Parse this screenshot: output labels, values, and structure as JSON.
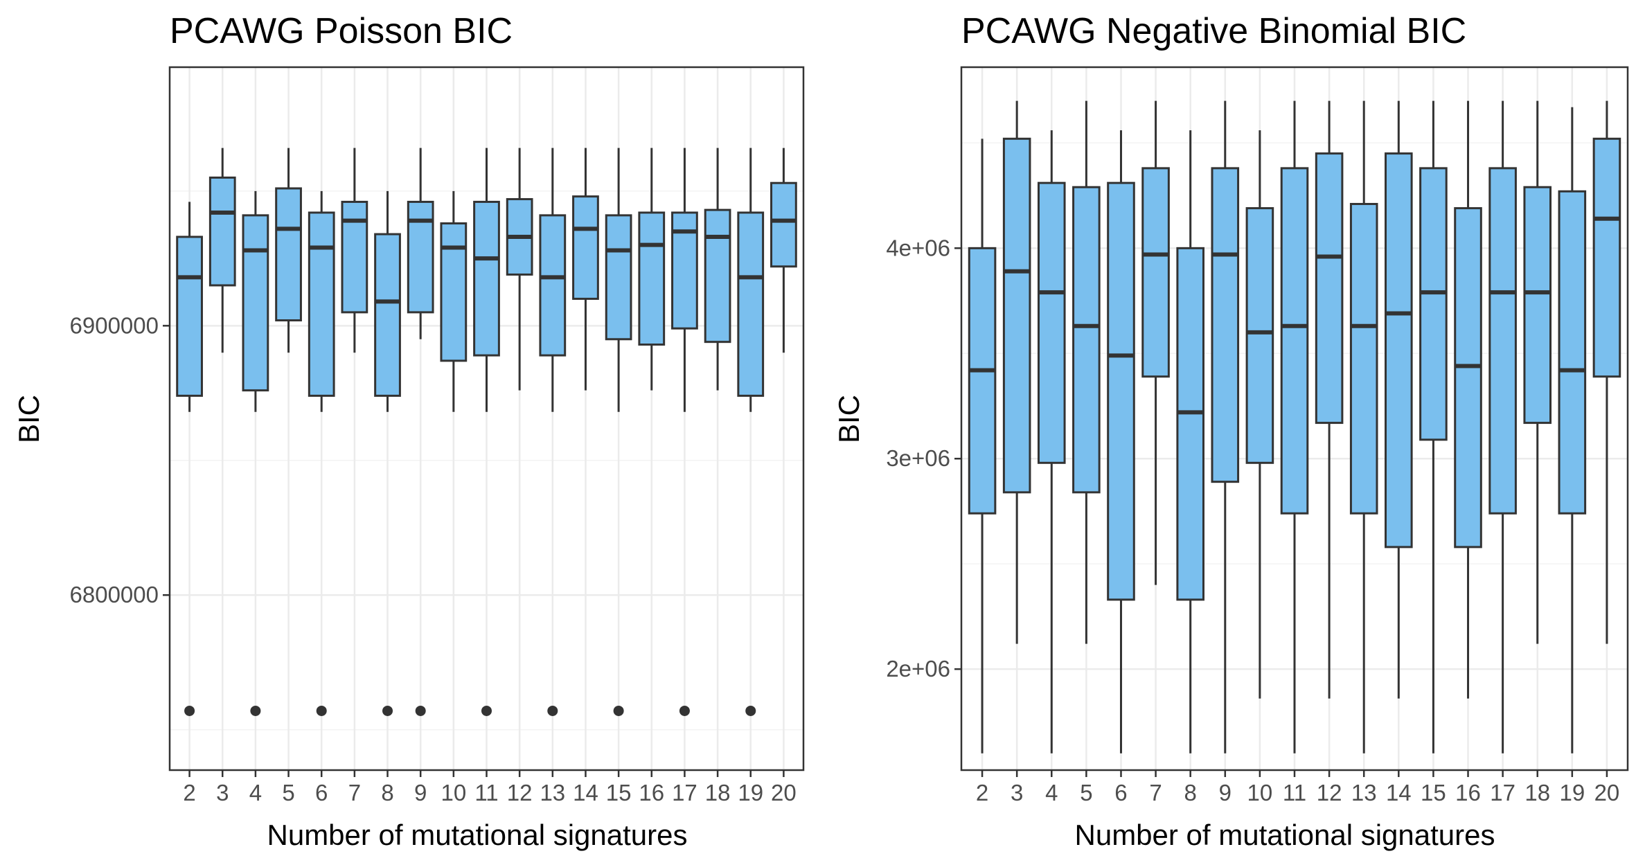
{
  "colors": {
    "box_fill": "#7ABFEE",
    "box_stroke": "#333333",
    "grid_major": "#EBEBEB",
    "grid_minor": "#F3F3F3",
    "panel_border": "#333333",
    "tick_text": "#4D4D4D"
  },
  "chart_data": [
    {
      "type": "boxplot",
      "title": "PCAWG Poisson BIC",
      "xlabel": "Number of mutational signatures",
      "ylabel": "BIC",
      "ylim": [
        6735000,
        6996000
      ],
      "yticks": [
        {
          "value": 6800000,
          "label": "6800000"
        },
        {
          "value": 6900000,
          "label": "6900000"
        }
      ],
      "yminor": [
        6750000,
        6850000,
        6950000
      ],
      "grid": true,
      "categories": [
        "2",
        "3",
        "4",
        "5",
        "6",
        "7",
        "8",
        "9",
        "10",
        "11",
        "12",
        "13",
        "14",
        "15",
        "16",
        "17",
        "18",
        "19",
        "20"
      ],
      "boxes": [
        {
          "k": "2",
          "whisker_low": 6868000,
          "q1": 6874000,
          "median": 6918000,
          "q3": 6933000,
          "whisker_high": 6946000,
          "outliers": [
            6757000
          ]
        },
        {
          "k": "3",
          "whisker_low": 6890000,
          "q1": 6915000,
          "median": 6942000,
          "q3": 6955000,
          "whisker_high": 6966000,
          "outliers": []
        },
        {
          "k": "4",
          "whisker_low": 6868000,
          "q1": 6876000,
          "median": 6928000,
          "q3": 6941000,
          "whisker_high": 6950000,
          "outliers": [
            6757000
          ]
        },
        {
          "k": "5",
          "whisker_low": 6890000,
          "q1": 6902000,
          "median": 6936000,
          "q3": 6951000,
          "whisker_high": 6966000,
          "outliers": []
        },
        {
          "k": "6",
          "whisker_low": 6868000,
          "q1": 6874000,
          "median": 6929000,
          "q3": 6942000,
          "whisker_high": 6950000,
          "outliers": [
            6757000
          ]
        },
        {
          "k": "7",
          "whisker_low": 6890000,
          "q1": 6905000,
          "median": 6939000,
          "q3": 6946000,
          "whisker_high": 6966000,
          "outliers": []
        },
        {
          "k": "8",
          "whisker_low": 6868000,
          "q1": 6874000,
          "median": 6909000,
          "q3": 6934000,
          "whisker_high": 6950000,
          "outliers": [
            6757000
          ]
        },
        {
          "k": "9",
          "whisker_low": 6895000,
          "q1": 6905000,
          "median": 6939000,
          "q3": 6946000,
          "whisker_high": 6966000,
          "outliers": [
            6757000
          ]
        },
        {
          "k": "10",
          "whisker_low": 6868000,
          "q1": 6887000,
          "median": 6929000,
          "q3": 6938000,
          "whisker_high": 6950000,
          "outliers": []
        },
        {
          "k": "11",
          "whisker_low": 6868000,
          "q1": 6889000,
          "median": 6925000,
          "q3": 6946000,
          "whisker_high": 6966000,
          "outliers": [
            6757000
          ]
        },
        {
          "k": "12",
          "whisker_low": 6876000,
          "q1": 6919000,
          "median": 6933000,
          "q3": 6947000,
          "whisker_high": 6966000,
          "outliers": []
        },
        {
          "k": "13",
          "whisker_low": 6868000,
          "q1": 6889000,
          "median": 6918000,
          "q3": 6941000,
          "whisker_high": 6966000,
          "outliers": [
            6757000
          ]
        },
        {
          "k": "14",
          "whisker_low": 6876000,
          "q1": 6910000,
          "median": 6936000,
          "q3": 6948000,
          "whisker_high": 6966000,
          "outliers": []
        },
        {
          "k": "15",
          "whisker_low": 6868000,
          "q1": 6895000,
          "median": 6928000,
          "q3": 6941000,
          "whisker_high": 6966000,
          "outliers": [
            6757000
          ]
        },
        {
          "k": "16",
          "whisker_low": 6876000,
          "q1": 6893000,
          "median": 6930000,
          "q3": 6942000,
          "whisker_high": 6966000,
          "outliers": []
        },
        {
          "k": "17",
          "whisker_low": 6868000,
          "q1": 6899000,
          "median": 6935000,
          "q3": 6942000,
          "whisker_high": 6966000,
          "outliers": [
            6757000
          ]
        },
        {
          "k": "18",
          "whisker_low": 6876000,
          "q1": 6894000,
          "median": 6933000,
          "q3": 6943000,
          "whisker_high": 6966000,
          "outliers": []
        },
        {
          "k": "19",
          "whisker_low": 6868000,
          "q1": 6874000,
          "median": 6918000,
          "q3": 6942000,
          "whisker_high": 6966000,
          "outliers": [
            6757000
          ]
        },
        {
          "k": "20",
          "whisker_low": 6890000,
          "q1": 6922000,
          "median": 6939000,
          "q3": 6953000,
          "whisker_high": 6966000,
          "outliers": []
        }
      ]
    },
    {
      "type": "boxplot",
      "title": "PCAWG Negative Binomial BIC",
      "xlabel": "Number of mutational signatures",
      "ylabel": "BIC",
      "ylim": [
        1520000,
        4860000
      ],
      "yticks": [
        {
          "value": 2000000,
          "label": "2e+06"
        },
        {
          "value": 3000000,
          "label": "3e+06"
        },
        {
          "value": 4000000,
          "label": "4e+06"
        }
      ],
      "yminor": [
        1500000,
        2500000,
        3500000,
        4500000
      ],
      "grid": true,
      "categories": [
        "2",
        "3",
        "4",
        "5",
        "6",
        "7",
        "8",
        "9",
        "10",
        "11",
        "12",
        "13",
        "14",
        "15",
        "16",
        "17",
        "18",
        "19",
        "20"
      ],
      "boxes": [
        {
          "k": "2",
          "whisker_low": 1600000,
          "q1": 2740000,
          "median": 3420000,
          "q3": 4000000,
          "whisker_high": 4520000,
          "outliers": []
        },
        {
          "k": "3",
          "whisker_low": 2120000,
          "q1": 2840000,
          "median": 3890000,
          "q3": 4520000,
          "whisker_high": 4700000,
          "outliers": []
        },
        {
          "k": "4",
          "whisker_low": 1600000,
          "q1": 2980000,
          "median": 3790000,
          "q3": 4310000,
          "whisker_high": 4560000,
          "outliers": []
        },
        {
          "k": "5",
          "whisker_low": 2120000,
          "q1": 2840000,
          "median": 3630000,
          "q3": 4290000,
          "whisker_high": 4700000,
          "outliers": []
        },
        {
          "k": "6",
          "whisker_low": 1600000,
          "q1": 2330000,
          "median": 3490000,
          "q3": 4310000,
          "whisker_high": 4560000,
          "outliers": []
        },
        {
          "k": "7",
          "whisker_low": 2400000,
          "q1": 3390000,
          "median": 3970000,
          "q3": 4380000,
          "whisker_high": 4700000,
          "outliers": []
        },
        {
          "k": "8",
          "whisker_low": 1600000,
          "q1": 2330000,
          "median": 3220000,
          "q3": 4000000,
          "whisker_high": 4560000,
          "outliers": []
        },
        {
          "k": "9",
          "whisker_low": 1600000,
          "q1": 2890000,
          "median": 3970000,
          "q3": 4380000,
          "whisker_high": 4700000,
          "outliers": []
        },
        {
          "k": "10",
          "whisker_low": 1860000,
          "q1": 2980000,
          "median": 3600000,
          "q3": 4190000,
          "whisker_high": 4560000,
          "outliers": []
        },
        {
          "k": "11",
          "whisker_low": 1600000,
          "q1": 2740000,
          "median": 3630000,
          "q3": 4380000,
          "whisker_high": 4700000,
          "outliers": []
        },
        {
          "k": "12",
          "whisker_low": 1860000,
          "q1": 3170000,
          "median": 3960000,
          "q3": 4450000,
          "whisker_high": 4700000,
          "outliers": []
        },
        {
          "k": "13",
          "whisker_low": 1600000,
          "q1": 2740000,
          "median": 3630000,
          "q3": 4210000,
          "whisker_high": 4700000,
          "outliers": []
        },
        {
          "k": "14",
          "whisker_low": 1860000,
          "q1": 2580000,
          "median": 3690000,
          "q3": 4450000,
          "whisker_high": 4700000,
          "outliers": []
        },
        {
          "k": "15",
          "whisker_low": 1600000,
          "q1": 3090000,
          "median": 3790000,
          "q3": 4380000,
          "whisker_high": 4700000,
          "outliers": []
        },
        {
          "k": "16",
          "whisker_low": 1860000,
          "q1": 2580000,
          "median": 3440000,
          "q3": 4190000,
          "whisker_high": 4700000,
          "outliers": []
        },
        {
          "k": "17",
          "whisker_low": 1600000,
          "q1": 2740000,
          "median": 3790000,
          "q3": 4380000,
          "whisker_high": 4700000,
          "outliers": []
        },
        {
          "k": "18",
          "whisker_low": 2120000,
          "q1": 3170000,
          "median": 3790000,
          "q3": 4290000,
          "whisker_high": 4700000,
          "outliers": []
        },
        {
          "k": "19",
          "whisker_low": 1600000,
          "q1": 2740000,
          "median": 3420000,
          "q3": 4270000,
          "whisker_high": 4670000,
          "outliers": []
        },
        {
          "k": "20",
          "whisker_low": 2120000,
          "q1": 3390000,
          "median": 4140000,
          "q3": 4520000,
          "whisker_high": 4700000,
          "outliers": []
        }
      ]
    }
  ]
}
